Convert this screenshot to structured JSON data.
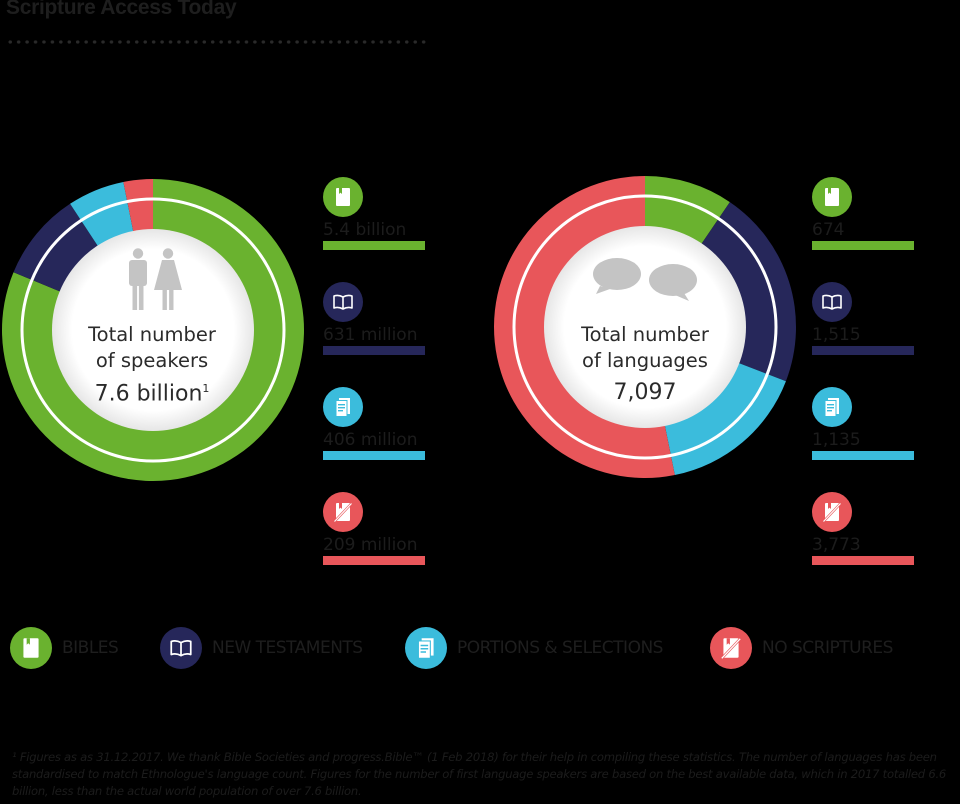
{
  "header": {
    "title": "Scripture Access Today"
  },
  "colors": {
    "bibles": "#6ab22f",
    "new_testaments": "#26275a",
    "portions": "#3bbcdc",
    "no_scriptures": "#e8565a",
    "center_fill": "#ffffff",
    "icon_gray": "#c4c4c4"
  },
  "speakers": {
    "label_line1": "Total number",
    "label_line2": "of speakers",
    "total": "7.6 billion",
    "footnote_mark": "1",
    "icon": "people-icon",
    "stats": [
      {
        "category": "bibles",
        "icon": "bible-icon",
        "value": "5.4 billion"
      },
      {
        "category": "new_testaments",
        "icon": "open-book-icon",
        "value": "631 million"
      },
      {
        "category": "portions",
        "icon": "pages-icon",
        "value": "406 million"
      },
      {
        "category": "no_scriptures",
        "icon": "no-book-icon",
        "value": "209 million"
      }
    ]
  },
  "languages": {
    "label_line1": "Total number",
    "label_line2": "of languages",
    "total": "7,097",
    "icon": "speech-bubbles-icon",
    "stats": [
      {
        "category": "bibles",
        "icon": "bible-icon",
        "value": "674"
      },
      {
        "category": "new_testaments",
        "icon": "open-book-icon",
        "value": "1,515"
      },
      {
        "category": "portions",
        "icon": "pages-icon",
        "value": "1,135"
      },
      {
        "category": "no_scriptures",
        "icon": "no-book-icon",
        "value": "3,773"
      }
    ]
  },
  "legend": [
    {
      "category": "bibles",
      "label": "BIBLES"
    },
    {
      "category": "new_testaments",
      "label": "NEW TESTAMENTS"
    },
    {
      "category": "portions",
      "label": "PORTIONS & SELECTIONS"
    },
    {
      "category": "no_scriptures",
      "label": "NO SCRIPTURES"
    }
  ],
  "footnote": "¹ Figures as as 31.12.2017. We thank Bible Societies and progress.Bible™ (1 Feb 2018) for their help in compiling these statistics. The number of languages has been standardised to match Ethnologue's language count. Figures for the number of first language speakers are based on the best available data, which in 2017 totalled 6.6 billion, less than the actual world population of over 7.6 billion.",
  "chart_data": [
    {
      "type": "pie",
      "title": "Total number of speakers 7.6 billion",
      "unit": "people",
      "categories": [
        "Bibles",
        "New Testaments",
        "Portions & Selections",
        "No Scriptures"
      ],
      "values": [
        5400000000,
        631000000,
        406000000,
        209000000
      ],
      "value_labels": [
        "5.4 billion",
        "631 million",
        "406 million",
        "209 million"
      ],
      "donut": true
    },
    {
      "type": "pie",
      "title": "Total number of languages 7,097",
      "unit": "languages",
      "categories": [
        "Bibles",
        "New Testaments",
        "Portions & Selections",
        "No Scriptures"
      ],
      "values": [
        674,
        1515,
        1135,
        3773
      ],
      "value_labels": [
        "674",
        "1,515",
        "1,135",
        "3,773"
      ],
      "donut": true
    }
  ]
}
